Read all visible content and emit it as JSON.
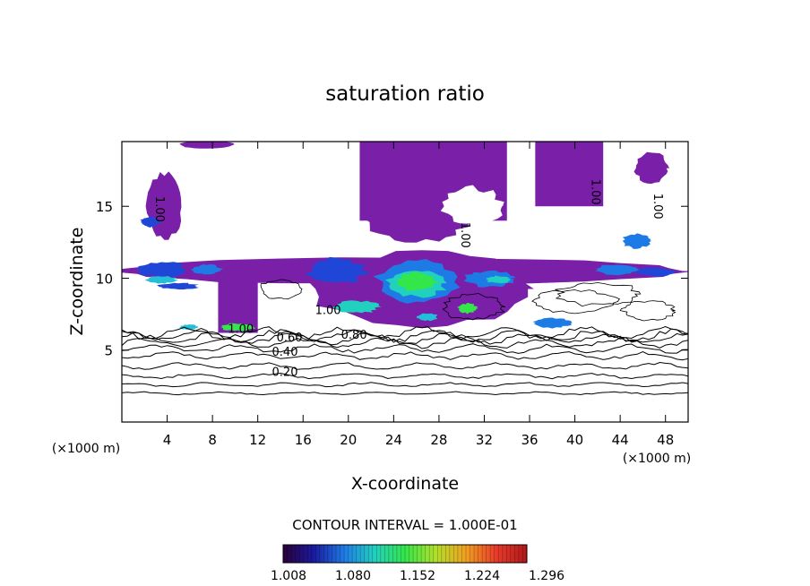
{
  "chart_data": {
    "type": "heatmap",
    "title": "saturation ratio",
    "xlabel": "X-coordinate",
    "ylabel": "Z-coordinate",
    "x_units_left": "(×1000 m)",
    "x_units_right": "(×1000 m)",
    "xlim": [
      0,
      50
    ],
    "ylim": [
      0,
      19.5
    ],
    "x_ticks": [
      4,
      8,
      12,
      16,
      20,
      24,
      28,
      32,
      36,
      40,
      44,
      48
    ],
    "y_ticks": [
      5,
      10,
      15
    ],
    "contour_interval_text": "CONTOUR INTERVAL = 1.000E-01",
    "colorbar": {
      "ticks": [
        "1.008",
        "1.080",
        "1.152",
        "1.224",
        "1.296"
      ],
      "colors": [
        "#2a003a",
        "#1a1a9e",
        "#1e7be6",
        "#22d0c0",
        "#33e64a",
        "#b0e02a",
        "#f0a020",
        "#e83a2a",
        "#b01818"
      ]
    },
    "contour_labels": [
      {
        "text": "0.20",
        "x": 14.4,
        "y": 3.2
      },
      {
        "text": "0.40",
        "x": 14.4,
        "y": 4.6
      },
      {
        "text": "0.60",
        "x": 14.8,
        "y": 5.6
      },
      {
        "text": "0.80",
        "x": 20.5,
        "y": 5.8
      },
      {
        "text": "1.00",
        "x": 10.5,
        "y": 6.2
      },
      {
        "text": "1.00",
        "x": 18.2,
        "y": 7.5
      },
      {
        "text": "1.00",
        "x": 3.0,
        "y": 14.8
      },
      {
        "text": "1.00",
        "x": 30.0,
        "y": 13.0
      },
      {
        "text": "1.00",
        "x": 41.5,
        "y": 16.0
      },
      {
        "text": "1.00",
        "x": 47.0,
        "y": 15.0
      }
    ],
    "supersaturated_regions": [
      {
        "name": "upper-plume-center",
        "x": [
          21,
          34
        ],
        "y": [
          12.5,
          19.5
        ]
      },
      {
        "name": "upper-plume-right",
        "x": [
          36.5,
          42.5
        ],
        "y": [
          14.5,
          19.5
        ]
      },
      {
        "name": "upper-left-column",
        "x": [
          2,
          5.5
        ],
        "y": [
          12.5,
          17.5
        ]
      },
      {
        "name": "left-low-column",
        "x": [
          8.5,
          12
        ],
        "y": [
          6.2,
          11
        ]
      },
      {
        "name": "main-band",
        "x": [
          0,
          50
        ],
        "y": [
          9.5,
          11.5
        ]
      },
      {
        "name": "mid-core",
        "x": [
          16,
          37
        ],
        "y": [
          6.5,
          12
        ]
      }
    ]
  }
}
